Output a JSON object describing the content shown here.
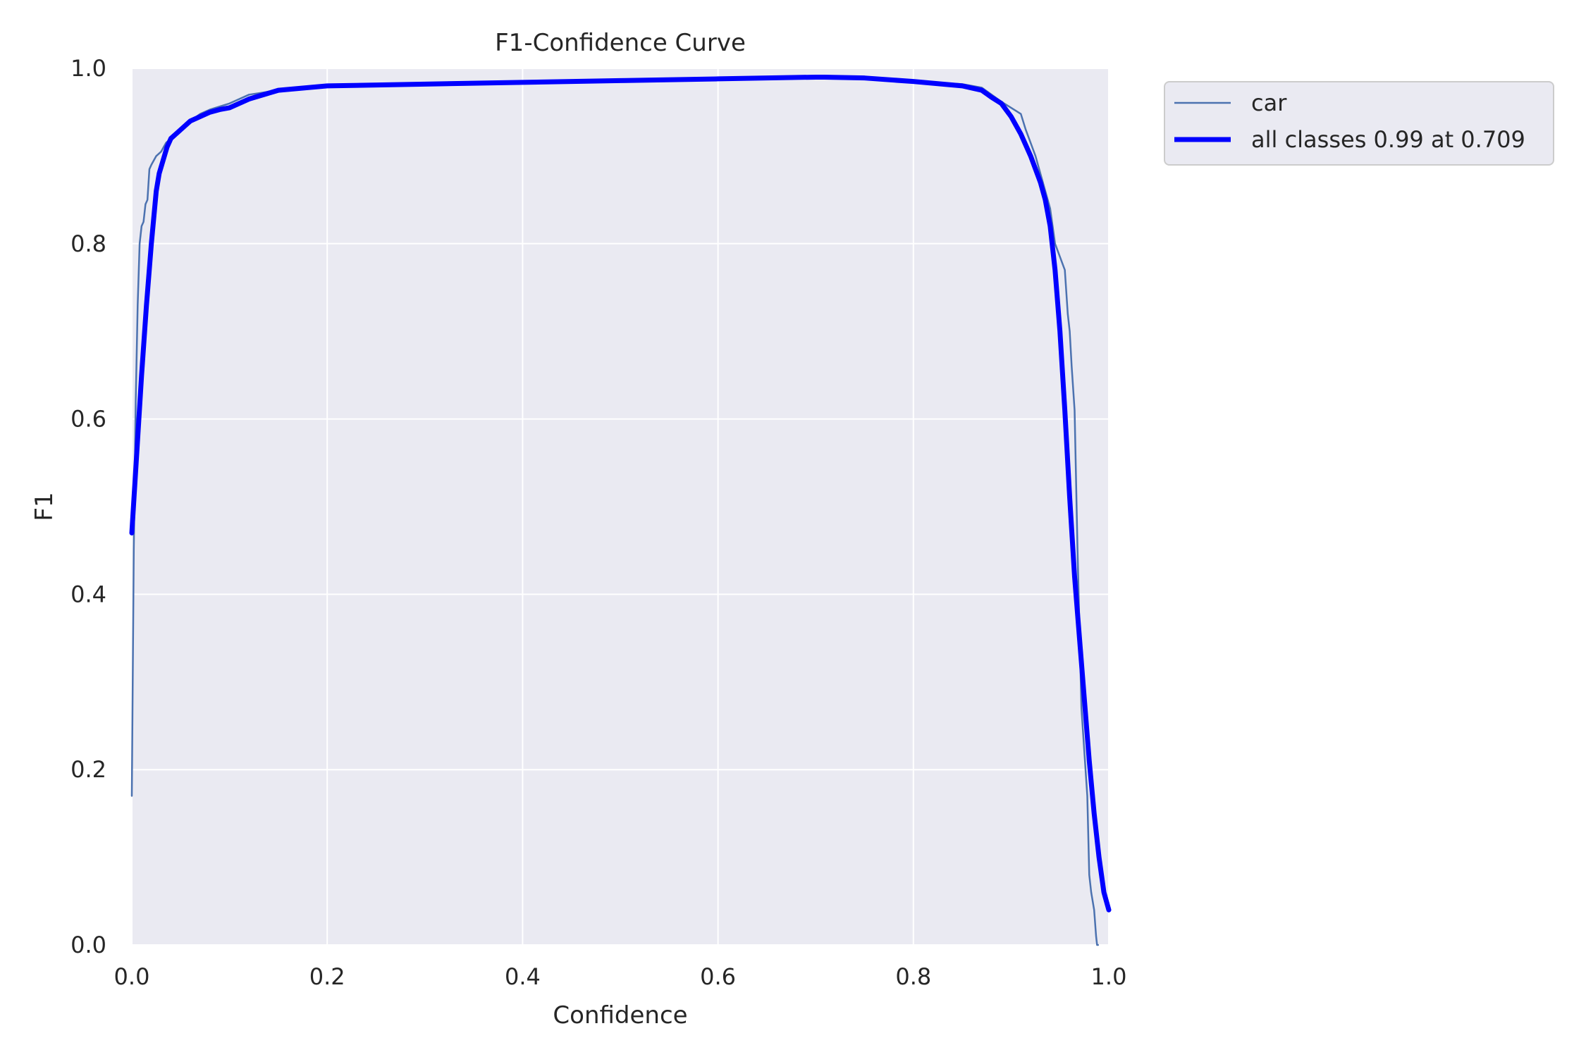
{
  "chart_data": {
    "type": "line",
    "title": "F1-Confidence Curve",
    "xlabel": "Confidence",
    "ylabel": "F1",
    "xlim": [
      0,
      1
    ],
    "ylim": [
      0,
      1
    ],
    "x_ticks": [
      "0.0",
      "0.2",
      "0.4",
      "0.6",
      "0.8",
      "1.0"
    ],
    "y_ticks": [
      "0.0",
      "0.2",
      "0.4",
      "0.6",
      "0.8",
      "1.0"
    ],
    "grid": true,
    "legend_position": "outside top-right",
    "colors": {
      "background": "#eaeaf2",
      "grid": "#ffffff",
      "car": "#4c72b0",
      "all_classes": "#0000ff"
    },
    "series": [
      {
        "name": "car",
        "x": [
          0.0,
          0.002,
          0.004,
          0.006,
          0.008,
          0.01,
          0.012,
          0.014,
          0.016,
          0.018,
          0.02,
          0.025,
          0.03,
          0.035,
          0.04,
          0.05,
          0.06,
          0.07,
          0.08,
          0.1,
          0.12,
          0.15,
          0.2,
          0.3,
          0.4,
          0.5,
          0.6,
          0.7,
          0.709,
          0.75,
          0.8,
          0.85,
          0.87,
          0.88,
          0.89,
          0.9,
          0.91,
          0.915,
          0.92,
          0.925,
          0.93,
          0.935,
          0.94,
          0.945,
          0.95,
          0.955,
          0.958,
          0.96,
          0.962,
          0.965,
          0.968,
          0.97,
          0.972,
          0.975,
          0.978,
          0.98,
          0.982,
          0.985,
          0.987,
          0.988,
          0.989
        ],
        "y": [
          0.17,
          0.45,
          0.62,
          0.73,
          0.8,
          0.82,
          0.825,
          0.845,
          0.85,
          0.885,
          0.89,
          0.9,
          0.905,
          0.915,
          0.92,
          0.93,
          0.94,
          0.948,
          0.953,
          0.96,
          0.97,
          0.975,
          0.98,
          0.982,
          0.984,
          0.986,
          0.988,
          0.99,
          0.99,
          0.988,
          0.985,
          0.982,
          0.978,
          0.97,
          0.962,
          0.955,
          0.948,
          0.93,
          0.915,
          0.9,
          0.88,
          0.86,
          0.84,
          0.8,
          0.785,
          0.77,
          0.72,
          0.7,
          0.66,
          0.61,
          0.45,
          0.36,
          0.27,
          0.22,
          0.17,
          0.08,
          0.06,
          0.04,
          0.01,
          0.0,
          0.0
        ]
      },
      {
        "name": "all classes 0.99 at 0.709",
        "x": [
          0.0,
          0.005,
          0.01,
          0.015,
          0.02,
          0.025,
          0.028,
          0.032,
          0.036,
          0.04,
          0.045,
          0.05,
          0.06,
          0.07,
          0.08,
          0.09,
          0.1,
          0.12,
          0.15,
          0.2,
          0.3,
          0.4,
          0.5,
          0.6,
          0.7,
          0.709,
          0.75,
          0.8,
          0.85,
          0.87,
          0.88,
          0.89,
          0.9,
          0.91,
          0.92,
          0.93,
          0.935,
          0.94,
          0.945,
          0.95,
          0.955,
          0.96,
          0.965,
          0.97,
          0.975,
          0.98,
          0.985,
          0.99,
          0.995,
          1.0
        ],
        "y": [
          0.47,
          0.56,
          0.65,
          0.73,
          0.8,
          0.86,
          0.88,
          0.895,
          0.91,
          0.92,
          0.925,
          0.93,
          0.94,
          0.945,
          0.95,
          0.953,
          0.955,
          0.965,
          0.975,
          0.98,
          0.982,
          0.984,
          0.986,
          0.988,
          0.99,
          0.99,
          0.989,
          0.985,
          0.98,
          0.975,
          0.967,
          0.96,
          0.945,
          0.925,
          0.9,
          0.87,
          0.85,
          0.82,
          0.77,
          0.7,
          0.61,
          0.51,
          0.42,
          0.35,
          0.28,
          0.21,
          0.15,
          0.1,
          0.06,
          0.04
        ]
      }
    ]
  }
}
